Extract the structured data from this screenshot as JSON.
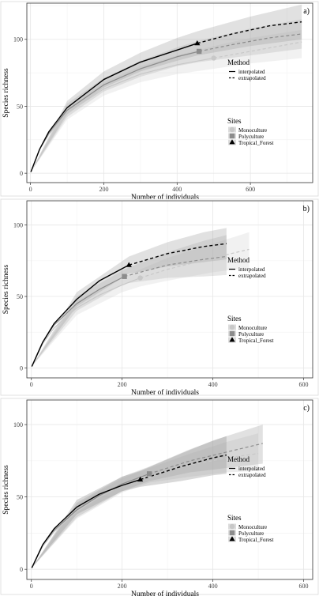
{
  "chart_data": [
    {
      "type": "line",
      "panel_label": "a)",
      "xlabel": "Number of individuals",
      "ylabel": "Species richness",
      "xlim": [
        -10,
        770
      ],
      "ylim": [
        -7,
        127
      ],
      "x_ticks": [
        0,
        200,
        400,
        600
      ],
      "y_ticks": [
        0,
        50,
        100
      ],
      "grid": true,
      "legend_position": "right",
      "legend": {
        "method_title": "Method",
        "method_items": [
          "interpolated",
          "extrapolated"
        ],
        "sites_title": "Sites",
        "sites_items": [
          "Monoculture",
          "Polyculture",
          "Tropical_Forest"
        ]
      },
      "series": [
        {
          "name": "Monoculture",
          "color": "#c8c8c8",
          "marker": "circle",
          "observed": [
            500,
            86
          ],
          "interpolated": {
            "x": [
              1,
              25,
              50,
              100,
              200,
              300,
              400,
              500
            ],
            "y": [
              1,
              18,
              29,
              45,
              63,
              74,
              81,
              86
            ]
          },
          "extrapolated": {
            "x": [
              500,
              600,
              700,
              740
            ],
            "y": [
              86,
              91,
              96,
              98
            ]
          },
          "ci": {
            "x": [
              1,
              100,
              200,
              300,
              400,
              500,
              600,
              740
            ],
            "upper": [
              1,
              50,
              68,
              80,
              88,
              95,
              101,
              107
            ],
            "lower": [
              1,
              40,
              58,
              68,
              74,
              78,
              82,
              86
            ]
          }
        },
        {
          "name": "Polyculture",
          "color": "#8c8c8c",
          "marker": "square",
          "observed": [
            460,
            91
          ],
          "interpolated": {
            "x": [
              1,
              25,
              50,
              100,
              200,
              300,
              400,
              460
            ],
            "y": [
              1,
              18,
              30,
              47,
              66,
              78,
              87,
              91
            ]
          },
          "extrapolated": {
            "x": [
              460,
              550,
              650,
              740
            ],
            "y": [
              91,
              96,
              101,
              104
            ]
          },
          "ci": {
            "x": [
              1,
              100,
              200,
              300,
              400,
              460,
              600,
              740
            ],
            "upper": [
              1,
              52,
              71,
              84,
              94,
              99,
              108,
              115
            ],
            "lower": [
              1,
              42,
              61,
              72,
              80,
              83,
              88,
              93
            ]
          }
        },
        {
          "name": "Tropical_Forest",
          "color": "#000000",
          "marker": "triangle",
          "observed": [
            455,
            97
          ],
          "interpolated": {
            "x": [
              1,
              25,
              50,
              100,
              200,
              300,
              400,
              455
            ],
            "y": [
              1,
              18,
              31,
              49,
              70,
              83,
              92,
              97
            ]
          },
          "extrapolated": {
            "x": [
              455,
              550,
              650,
              740
            ],
            "y": [
              97,
              104,
              110,
              113
            ]
          },
          "ci": {
            "x": [
              1,
              100,
              200,
              300,
              400,
              455,
              600,
              740
            ],
            "upper": [
              1,
              54,
              76,
              90,
              101,
              106,
              117,
              126
            ],
            "lower": [
              1,
              44,
              64,
              76,
              84,
              88,
              95,
              100
            ]
          }
        }
      ]
    },
    {
      "type": "line",
      "panel_label": "b)",
      "xlabel": "Number of individuals",
      "ylabel": "Species richness",
      "xlim": [
        -10,
        620
      ],
      "ylim": [
        -7,
        117
      ],
      "x_ticks": [
        0,
        200,
        400,
        600
      ],
      "y_ticks": [
        0,
        50,
        100
      ],
      "grid": true,
      "legend_position": "right",
      "legend": {
        "method_title": "Method",
        "method_items": [
          "interpolated",
          "extrapolated"
        ],
        "sites_title": "Sites",
        "sites_items": [
          "Monoculture",
          "Polyculture",
          "Tropical_Forest"
        ]
      },
      "series": [
        {
          "name": "Monoculture",
          "color": "#c8c8c8",
          "marker": "circle",
          "observed": [
            240,
            63
          ],
          "interpolated": {
            "x": [
              1,
              25,
              50,
              100,
              150,
              200,
              240
            ],
            "y": [
              1,
              17,
              28,
              42,
              51,
              58,
              63
            ]
          },
          "extrapolated": {
            "x": [
              240,
              300,
              400,
              480
            ],
            "y": [
              63,
              69,
              77,
              83
            ]
          },
          "ci": {
            "x": [
              1,
              100,
              200,
              240,
              300,
              400,
              480
            ],
            "upper": [
              1,
              47,
              63,
              69,
              77,
              87,
              95
            ],
            "lower": [
              1,
              37,
              53,
              57,
              61,
              67,
              70
            ]
          }
        },
        {
          "name": "Polyculture",
          "color": "#8c8c8c",
          "marker": "square",
          "observed": [
            205,
            64
          ],
          "interpolated": {
            "x": [
              1,
              25,
              50,
              100,
              150,
              205
            ],
            "y": [
              1,
              18,
              30,
              45,
              55,
              64
            ]
          },
          "extrapolated": {
            "x": [
              205,
              300,
              380,
              430
            ],
            "y": [
              64,
              72,
              76,
              78
            ]
          },
          "ci": {
            "x": [
              1,
              100,
              205,
              300,
              380,
              430
            ],
            "upper": [
              1,
              50,
              69,
              81,
              89,
              93
            ],
            "lower": [
              1,
              40,
              59,
              63,
              64,
              65
            ]
          }
        },
        {
          "name": "Tropical_Forest",
          "color": "#000000",
          "marker": "triangle",
          "observed": [
            215,
            72
          ],
          "interpolated": {
            "x": [
              1,
              25,
              50,
              100,
              150,
              215
            ],
            "y": [
              1,
              18,
              31,
              48,
              61,
              72
            ]
          },
          "extrapolated": {
            "x": [
              215,
              300,
              380,
              430
            ],
            "y": [
              72,
              80,
              85,
              87
            ]
          },
          "ci": {
            "x": [
              1,
              100,
              215,
              300,
              380,
              430
            ],
            "upper": [
              1,
              53,
              78,
              88,
              95,
              98
            ],
            "lower": [
              1,
              43,
              66,
              71,
              74,
              76
            ]
          }
        }
      ]
    },
    {
      "type": "line",
      "panel_label": "c)",
      "xlabel": "Number of individuals",
      "ylabel": "Species richness",
      "xlim": [
        -10,
        620
      ],
      "ylim": [
        -7,
        117
      ],
      "x_ticks": [
        0,
        200,
        400,
        600
      ],
      "y_ticks": [
        0,
        50,
        100
      ],
      "grid": true,
      "legend_position": "right",
      "legend": {
        "method_title": "Method",
        "method_items": [
          "interpolated",
          "extrapolated"
        ],
        "sites_title": "Sites",
        "sites_items": [
          "Monoculture",
          "Polyculture",
          "Tropical_Forest"
        ]
      },
      "series": [
        {
          "name": "Monoculture",
          "color": "#c8c8c8",
          "marker": "circle",
          "observed": [
            260,
            65
          ],
          "interpolated": {
            "x": [
              1,
              25,
              50,
              100,
              150,
              200,
              260
            ],
            "y": [
              1,
              16,
              26,
              40,
              50,
              58,
              65
            ]
          },
          "extrapolated": {
            "x": [
              260,
              350,
              430,
              500
            ],
            "y": [
              65,
              72,
              77,
              80
            ]
          },
          "ci": {
            "x": [
              1,
              100,
              200,
              260,
              350,
              430,
              500
            ],
            "upper": [
              1,
              45,
              63,
              70,
              80,
              88,
              94
            ],
            "lower": [
              1,
              35,
              53,
              60,
              64,
              67,
              68
            ]
          }
        },
        {
          "name": "Polyculture",
          "color": "#8c8c8c",
          "marker": "square",
          "observed": [
            260,
            66
          ],
          "interpolated": {
            "x": [
              1,
              25,
              50,
              100,
              150,
              200,
              260
            ],
            "y": [
              1,
              17,
              27,
              41,
              51,
              59,
              66
            ]
          },
          "extrapolated": {
            "x": [
              260,
              350,
              430,
              510
            ],
            "y": [
              66,
              75,
              81,
              87
            ]
          },
          "ci": {
            "x": [
              1,
              100,
              200,
              260,
              350,
              430,
              510
            ],
            "upper": [
              1,
              46,
              64,
              71,
              83,
              92,
              100
            ],
            "lower": [
              1,
              36,
              54,
              61,
              67,
              70,
              73
            ]
          }
        },
        {
          "name": "Tropical_Forest",
          "color": "#000000",
          "marker": "triangle",
          "observed": [
            240,
            62
          ],
          "interpolated": {
            "x": [
              1,
              25,
              50,
              100,
              150,
              200,
              240
            ],
            "y": [
              1,
              17,
              28,
              43,
              52,
              58,
              62
            ]
          },
          "extrapolated": {
            "x": [
              240,
              330,
              400,
              430
            ],
            "y": [
              62,
              71,
              77,
              79
            ]
          },
          "ci": {
            "x": [
              1,
              100,
              200,
              240,
              330,
              400,
              430
            ],
            "upper": [
              1,
              48,
              64,
              68,
              80,
              89,
              92
            ],
            "lower": [
              1,
              38,
              54,
              57,
              61,
              65,
              66
            ]
          }
        }
      ]
    }
  ]
}
